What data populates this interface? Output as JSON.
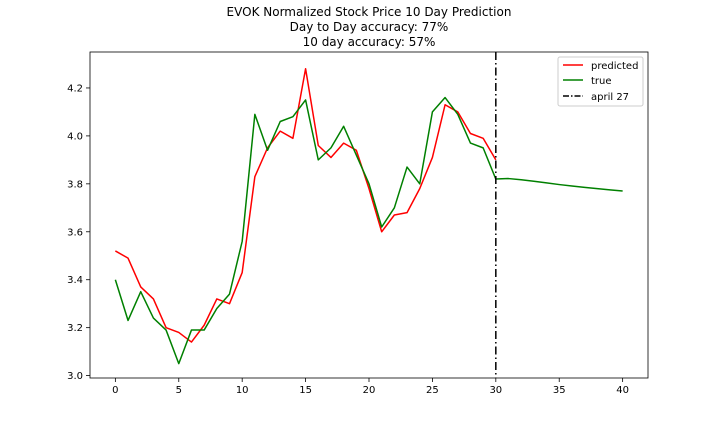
{
  "chart_data": {
    "type": "line",
    "title": "EVOK Normalized Stock Price 10 Day Prediction",
    "subtitle_lines": [
      "Day to Day accuracy: 77%",
      "10 day accuracy: 57%"
    ],
    "xlabel": "",
    "ylabel": "",
    "xlim": [
      -2,
      42
    ],
    "ylim": [
      2.99,
      4.35
    ],
    "xticks": [
      0,
      5,
      10,
      15,
      20,
      25,
      30,
      35,
      40
    ],
    "yticks": [
      3.0,
      3.2,
      3.4,
      3.6,
      3.8,
      4.0,
      4.2
    ],
    "ytick_labels": [
      "3.0",
      "3.2",
      "3.4",
      "3.6",
      "3.8",
      "4.0",
      "4.2"
    ],
    "grid": false,
    "legend_position": "top-right",
    "series": [
      {
        "name": "predicted",
        "color": "#ff0000",
        "x": [
          0,
          1,
          2,
          3,
          4,
          5,
          6,
          7,
          8,
          9,
          10,
          11,
          12,
          13,
          14,
          15,
          16,
          17,
          18,
          19,
          20,
          21,
          22,
          23,
          24,
          25,
          26,
          27,
          28,
          29,
          30
        ],
        "values": [
          3.52,
          3.49,
          3.37,
          3.32,
          3.2,
          3.18,
          3.14,
          3.21,
          3.32,
          3.3,
          3.43,
          3.83,
          3.95,
          4.02,
          3.99,
          4.28,
          3.96,
          3.91,
          3.97,
          3.94,
          3.78,
          3.6,
          3.67,
          3.68,
          3.78,
          3.91,
          4.13,
          4.1,
          4.01,
          3.99,
          3.9
        ]
      },
      {
        "name": "true",
        "color": "#008000",
        "x": [
          0,
          1,
          2,
          3,
          4,
          5,
          6,
          7,
          8,
          9,
          10,
          11,
          12,
          13,
          14,
          15,
          16,
          17,
          18,
          19,
          20,
          21,
          22,
          23,
          24,
          25,
          26,
          27,
          28,
          29,
          30,
          31,
          32,
          33,
          34,
          35,
          36,
          37,
          38,
          39,
          40
        ],
        "values": [
          3.4,
          3.23,
          3.35,
          3.24,
          3.19,
          3.05,
          3.19,
          3.19,
          3.28,
          3.34,
          3.56,
          4.09,
          3.94,
          4.06,
          4.08,
          4.15,
          3.9,
          3.95,
          4.04,
          3.92,
          3.8,
          3.62,
          3.7,
          3.87,
          3.8,
          4.1,
          4.16,
          4.09,
          3.97,
          3.95,
          3.82,
          3.822,
          3.817,
          3.811,
          3.804,
          3.797,
          3.791,
          3.785,
          3.78,
          3.775,
          3.77
        ]
      }
    ],
    "vline": {
      "name": "april 27",
      "x": 30,
      "color": "#000000",
      "style": "dash-dot"
    }
  }
}
